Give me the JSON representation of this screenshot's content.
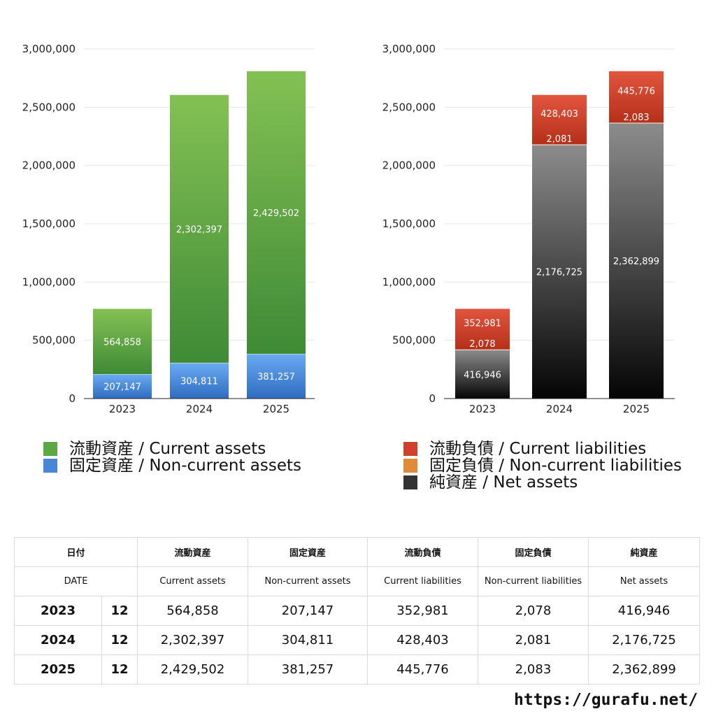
{
  "chart_data": [
    {
      "type": "bar",
      "stacked": true,
      "categories": [
        "2023",
        "2024",
        "2025"
      ],
      "series": [
        {
          "name": "固定資産 / Non-current assets",
          "values": [
            207147,
            304811,
            381257
          ],
          "color": "#4a86d6"
        },
        {
          "name": "流動資産 / Current assets",
          "values": [
            564858,
            2302397,
            2429502
          ],
          "color": "#5ca845"
        }
      ],
      "ylim": [
        0,
        3000000
      ],
      "yticks": [
        "0",
        "500,000",
        "1,000,000",
        "1,500,000",
        "2,000,000",
        "2,500,000",
        "3,000,000"
      ],
      "grid": true,
      "legend": "bottom"
    },
    {
      "type": "bar",
      "stacked": true,
      "categories": [
        "2023",
        "2024",
        "2025"
      ],
      "series": [
        {
          "name": "純資産 / Net assets",
          "values": [
            416946,
            2176725,
            2362899
          ],
          "color": "#444444"
        },
        {
          "name": "固定負債 / Non-current liabilities",
          "values": [
            2078,
            2081,
            2083
          ],
          "color": "#e08a3a"
        },
        {
          "name": "流動負債 / Current liabilities",
          "values": [
            352981,
            428403,
            445776
          ],
          "color": "#d0402a"
        }
      ],
      "ylim": [
        0,
        3000000
      ],
      "yticks": [
        "0",
        "500,000",
        "1,000,000",
        "1,500,000",
        "2,000,000",
        "2,500,000",
        "3,000,000"
      ],
      "grid": true,
      "legend": "bottom"
    }
  ],
  "legend_left": [
    {
      "label": "流動資産 / Current assets",
      "color": "#5ca845"
    },
    {
      "label": "固定資産 / Non-current assets",
      "color": "#4a86d6"
    }
  ],
  "legend_right": [
    {
      "label": "流動負債 / Current liabilities",
      "color": "#d0402a"
    },
    {
      "label": "固定負債 / Non-current liabilities",
      "color": "#e08a3a"
    },
    {
      "label": "純資産 / Net assets",
      "color": "#333333"
    }
  ],
  "table": {
    "h1": {
      "date": "日付",
      "c1": "流動資産",
      "c2": "固定資産",
      "c3": "流動負債",
      "c4": "固定負債",
      "c5": "純資産"
    },
    "h2": {
      "date": "DATE",
      "c1": "Current assets",
      "c2": "Non-current assets",
      "c3": "Current liabilities",
      "c4": "Non-current liabilities",
      "c5": "Net assets"
    },
    "rows": [
      {
        "year": "2023",
        "month": "12",
        "c1": "564,858",
        "c2": "207,147",
        "c3": "352,981",
        "c4": "2,078",
        "c5": "416,946"
      },
      {
        "year": "2024",
        "month": "12",
        "c1": "2,302,397",
        "c2": "304,811",
        "c3": "428,403",
        "c4": "2,081",
        "c5": "2,176,725"
      },
      {
        "year": "2025",
        "month": "12",
        "c1": "2,429,502",
        "c2": "381,257",
        "c3": "445,776",
        "c4": "2,083",
        "c5": "2,362,899"
      }
    ]
  },
  "footer": "https://gurafu.net/"
}
